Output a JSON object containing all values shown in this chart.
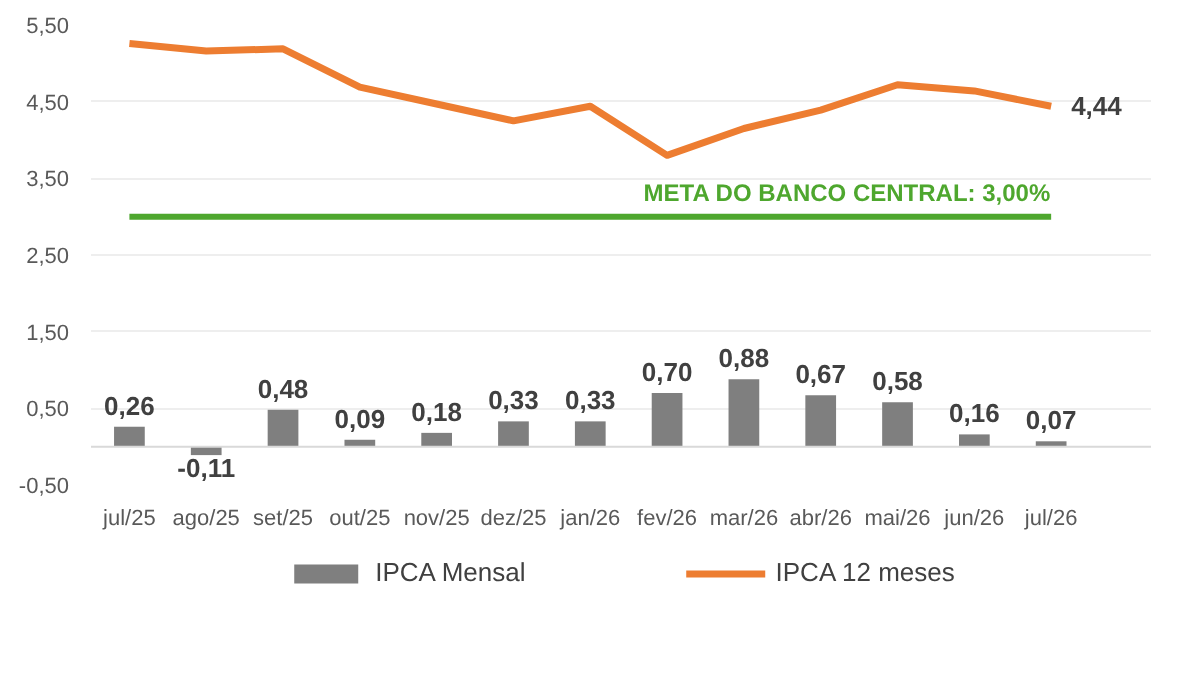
{
  "chart_data": {
    "type": "bar",
    "categories": [
      "jul/25",
      "ago/25",
      "set/25",
      "out/25",
      "nov/25",
      "dez/25",
      "jan/26",
      "fev/26",
      "mar/26",
      "abr/26",
      "mai/26",
      "jun/26",
      "jul/26"
    ],
    "series": [
      {
        "name": "IPCA Mensal",
        "color": "#7f7f7f",
        "values": [
          0.26,
          -0.11,
          0.48,
          0.09,
          0.18,
          0.33,
          0.33,
          0.7,
          0.88,
          0.67,
          0.58,
          0.16,
          0.07
        ],
        "value_labels": [
          "0,26",
          "-0,11",
          "0,48",
          "0,09",
          "0,18",
          "0,33",
          "0,33",
          "0,70",
          "0,88",
          "0,67",
          "0,58",
          "0,16",
          "0,07"
        ]
      },
      {
        "name": "IPCA 12 meses",
        "type": "line",
        "color": "#ed7d31",
        "values": [
          5.26,
          5.16,
          5.19,
          4.69,
          4.47,
          4.25,
          4.44,
          3.8,
          4.15,
          4.39,
          4.72,
          4.64,
          4.44
        ],
        "value_labels": [
          null,
          null,
          null,
          null,
          null,
          null,
          null,
          null,
          null,
          null,
          null,
          null,
          "4,44"
        ]
      }
    ],
    "ylim": [
      -0.5,
      5.5
    ],
    "yticks": [
      {
        "value": -0.5,
        "label": "-0,50"
      },
      {
        "value": 0.5,
        "label": "0,50"
      },
      {
        "value": 1.5,
        "label": "1,50"
      },
      {
        "value": 2.5,
        "label": "2,50"
      },
      {
        "value": 3.5,
        "label": "3,50"
      },
      {
        "value": 4.5,
        "label": "4,50"
      },
      {
        "value": 5.5,
        "label": "5,50"
      }
    ],
    "ref_lines": [
      {
        "axis": "y",
        "value": 3.0,
        "label": "META DO BANCO CENTRAL: 3,00%",
        "color": "#4ea72e"
      }
    ],
    "grid": "y",
    "legend": "bottom",
    "line_style": "solid",
    "marker": "none"
  }
}
